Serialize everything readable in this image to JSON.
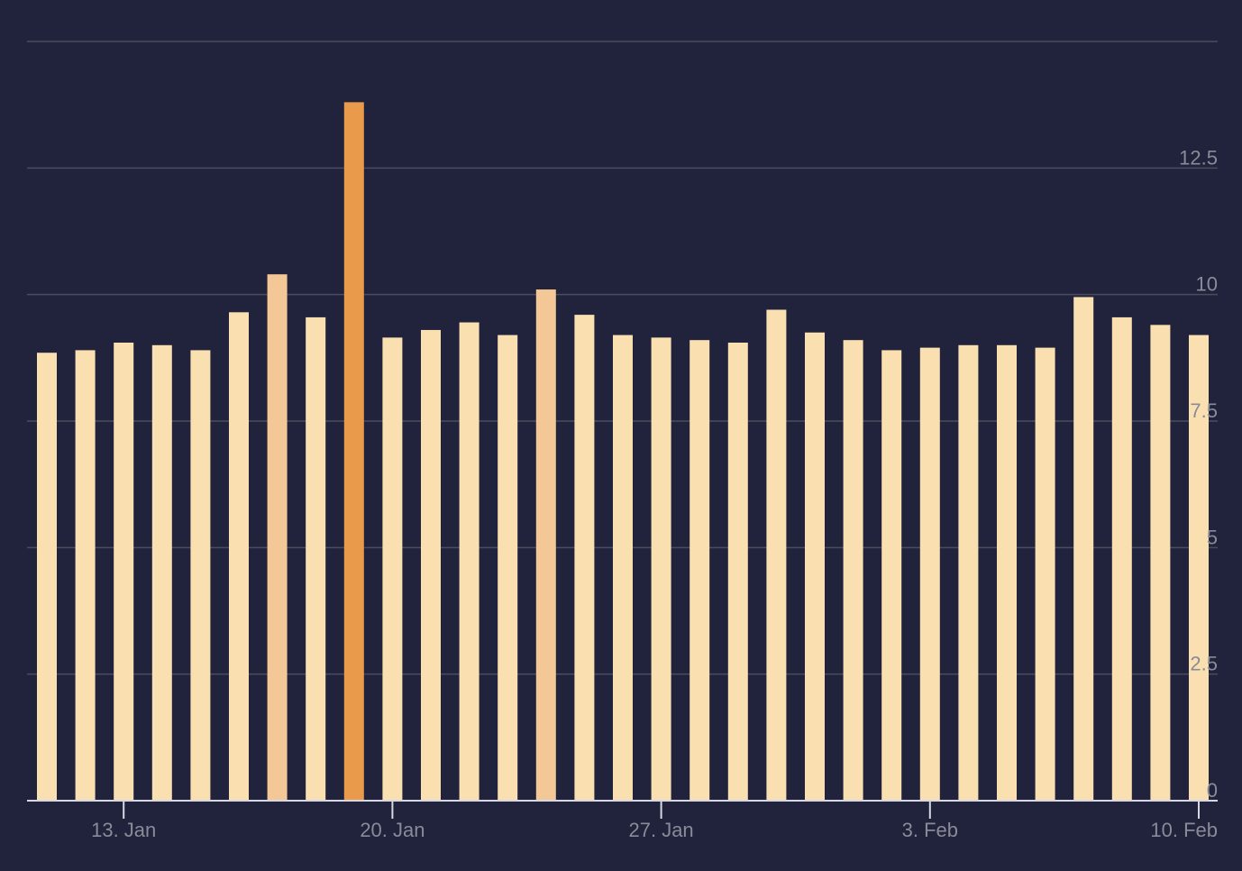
{
  "chart_data": {
    "type": "bar",
    "x_type": "date",
    "dates": [
      "2025-01-11",
      "2025-01-12",
      "2025-01-13",
      "2025-01-14",
      "2025-01-15",
      "2025-01-16",
      "2025-01-17",
      "2025-01-18",
      "2025-01-19",
      "2025-01-20",
      "2025-01-21",
      "2025-01-22",
      "2025-01-23",
      "2025-01-24",
      "2025-01-25",
      "2025-01-26",
      "2025-01-27",
      "2025-01-28",
      "2025-01-29",
      "2025-01-30",
      "2025-01-31",
      "2025-02-01",
      "2025-02-02",
      "2025-02-03",
      "2025-02-04",
      "2025-02-05",
      "2025-02-06",
      "2025-02-07",
      "2025-02-08",
      "2025-02-09",
      "2025-02-10"
    ],
    "values": [
      8.85,
      8.9,
      9.05,
      9.0,
      8.9,
      9.65,
      10.4,
      9.55,
      13.8,
      9.15,
      9.3,
      9.45,
      9.2,
      10.1,
      9.6,
      9.2,
      9.15,
      9.1,
      9.05,
      9.7,
      9.25,
      9.1,
      8.9,
      8.95,
      9.0,
      9.0,
      8.95,
      9.95,
      9.55,
      9.4,
      9.2
    ],
    "colors": [
      "#fae0b0",
      "#fae0b0",
      "#fae0b0",
      "#fae0b0",
      "#fae0b0",
      "#fae0b0",
      "#f4c896",
      "#fae0b0",
      "#e99a4a",
      "#fae0b0",
      "#fae0b0",
      "#fae0b0",
      "#fae0b0",
      "#f4c896",
      "#fae0b0",
      "#fae0b0",
      "#fae0b0",
      "#fae0b0",
      "#fae0b0",
      "#fae0b0",
      "#fae0b0",
      "#fae0b0",
      "#fae0b0",
      "#fae0b0",
      "#fae0b0",
      "#fae0b0",
      "#fae0b0",
      "#fae0b0",
      "#fae0b0",
      "#fae0b0",
      "#fae0b0"
    ],
    "ylim": [
      0,
      15
    ],
    "y_ticks": [
      0,
      2.5,
      5,
      7.5,
      10,
      12.5,
      15
    ],
    "y_tick_labels": [
      "0",
      "2.5",
      "5",
      "7.5",
      "10",
      "12.5",
      ""
    ],
    "x_ticks": [
      "2025-01-13",
      "2025-01-20",
      "2025-01-27",
      "2025-02-03",
      "2025-02-10"
    ],
    "x_tick_labels": [
      "13. Jan",
      "20. Jan",
      "27. Jan",
      "3. Feb",
      "10. Feb"
    ],
    "title": "",
    "xlabel": "",
    "ylabel": "",
    "grid": true,
    "legend": "none",
    "background": "#20233b"
  }
}
